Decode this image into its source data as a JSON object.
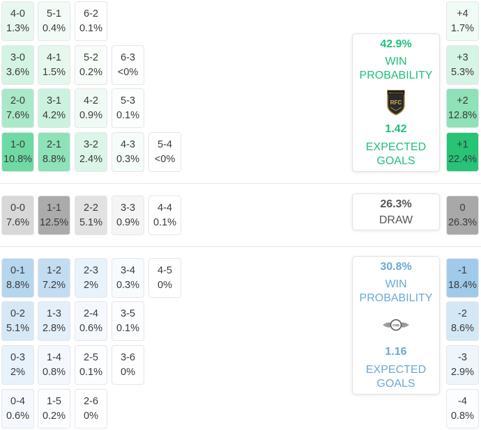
{
  "home": {
    "win_probability": "42.9%",
    "win_label_1": "WIN",
    "win_label_2": "PROBABILITY",
    "expected_goals": "1.42",
    "xg_label_1": "EXPECTED",
    "xg_label_2": "GOALS",
    "crest_text": "RECOLETA",
    "crest_initials": "RFC",
    "color": "#1fc07a"
  },
  "draw": {
    "probability": "26.3%",
    "label": "DRAW"
  },
  "away": {
    "win_probability": "30.8%",
    "win_label_1": "WIN",
    "win_label_2": "PROBABILITY",
    "expected_goals": "1.16",
    "xg_label_1": "EXPECTED",
    "xg_label_2": "GOALS",
    "crest_text": "CSD",
    "color": "#6aa9d6"
  },
  "home_scores": [
    {
      "score": "4-0",
      "pct": "1.3%"
    },
    {
      "score": "5-1",
      "pct": "0.4%"
    },
    {
      "score": "6-2",
      "pct": "0.1%"
    },
    {
      "score": "3-0",
      "pct": "3.6%"
    },
    {
      "score": "4-1",
      "pct": "1.5%"
    },
    {
      "score": "5-2",
      "pct": "0.2%"
    },
    {
      "score": "6-3",
      "pct": "<0%"
    },
    {
      "score": "2-0",
      "pct": "7.6%"
    },
    {
      "score": "3-1",
      "pct": "4.2%"
    },
    {
      "score": "4-2",
      "pct": "0.9%"
    },
    {
      "score": "5-3",
      "pct": "0.1%"
    },
    {
      "score": "1-0",
      "pct": "10.8%"
    },
    {
      "score": "2-1",
      "pct": "8.8%"
    },
    {
      "score": "3-2",
      "pct": "2.4%"
    },
    {
      "score": "4-3",
      "pct": "0.3%"
    },
    {
      "score": "5-4",
      "pct": "<0%"
    }
  ],
  "draw_scores": [
    {
      "score": "0-0",
      "pct": "7.6%"
    },
    {
      "score": "1-1",
      "pct": "12.5%"
    },
    {
      "score": "2-2",
      "pct": "5.1%"
    },
    {
      "score": "3-3",
      "pct": "0.9%"
    },
    {
      "score": "4-4",
      "pct": "0.1%"
    }
  ],
  "away_scores": [
    {
      "score": "0-1",
      "pct": "8.8%"
    },
    {
      "score": "1-2",
      "pct": "7.2%"
    },
    {
      "score": "2-3",
      "pct": "2%"
    },
    {
      "score": "3-4",
      "pct": "0.3%"
    },
    {
      "score": "4-5",
      "pct": "0%"
    },
    {
      "score": "0-2",
      "pct": "5.1%"
    },
    {
      "score": "1-3",
      "pct": "2.8%"
    },
    {
      "score": "2-4",
      "pct": "0.6%"
    },
    {
      "score": "3-5",
      "pct": "0.1%"
    },
    {
      "score": "0-3",
      "pct": "2%"
    },
    {
      "score": "1-4",
      "pct": "0.8%"
    },
    {
      "score": "2-5",
      "pct": "0.1%"
    },
    {
      "score": "3-6",
      "pct": "0%"
    },
    {
      "score": "0-4",
      "pct": "0.6%"
    },
    {
      "score": "1-5",
      "pct": "0.2%"
    },
    {
      "score": "2-6",
      "pct": "0%"
    }
  ],
  "margins": [
    {
      "label": "+4",
      "pct": "1.7%"
    },
    {
      "label": "+3",
      "pct": "5.3%"
    },
    {
      "label": "+2",
      "pct": "12.8%"
    },
    {
      "label": "+1",
      "pct": "22.4%"
    },
    {
      "label": "0",
      "pct": "26.3%"
    },
    {
      "label": "-1",
      "pct": "18.4%"
    },
    {
      "label": "-2",
      "pct": "8.6%"
    },
    {
      "label": "-3",
      "pct": "2.9%"
    },
    {
      "label": "-4",
      "pct": "0.8%"
    }
  ]
}
